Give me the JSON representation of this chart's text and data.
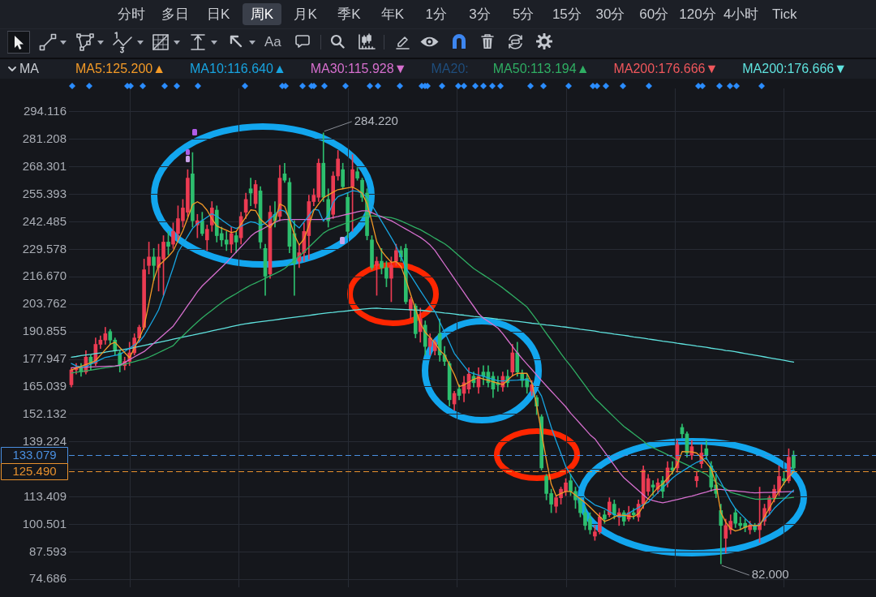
{
  "chart_data": {
    "type": "candlestick",
    "annotations": [
      "分时",
      "多日",
      "日K",
      "周K",
      "月K",
      "季K",
      "年K",
      "1分",
      "3分",
      "5分",
      "15分",
      "30分",
      "60分",
      "120分",
      "4小时",
      "Tick",
      "Aa",
      "MA",
      "MA20:",
      "284.220",
      "82.000"
    ],
    "categories": [
      null,
      null,
      null,
      null,
      null,
      null,
      null,
      null,
      null,
      null,
      null,
      null,
      null,
      null,
      null,
      null,
      null,
      null,
      null,
      null,
      null,
      null,
      null,
      null,
      null,
      null,
      null,
      null,
      null,
      null,
      null,
      null,
      null,
      null,
      null,
      null,
      null,
      null,
      null,
      null,
      null,
      null,
      null,
      null,
      null,
      null,
      null,
      null,
      null,
      null,
      null,
      null,
      null,
      null,
      null,
      null,
      null,
      null,
      null,
      null,
      null,
      null,
      null,
      null,
      null,
      null,
      null,
      null,
      null,
      null,
      null,
      null,
      null,
      null,
      null,
      null,
      null,
      null,
      null,
      null,
      null,
      null,
      null,
      null,
      null,
      null,
      null,
      null,
      null,
      null,
      null,
      null,
      null,
      null,
      null,
      null,
      null,
      null,
      null,
      null,
      null,
      null,
      null,
      null,
      null,
      null,
      null,
      null,
      null,
      null,
      null,
      null,
      null,
      null,
      null,
      null,
      null,
      null,
      null,
      null,
      null,
      null,
      null,
      null,
      null,
      null,
      null,
      null,
      null,
      null,
      null,
      null,
      null,
      null,
      null,
      null,
      null,
      null,
      null,
      null,
      null,
      null,
      null,
      null,
      null,
      null,
      null,
      null,
      null,
      null
    ],
    "ohlc": [
      [
        166,
        174,
        165,
        173
      ],
      [
        173,
        176,
        171,
        174
      ],
      [
        174,
        176,
        170,
        172
      ],
      [
        172,
        182,
        171,
        179
      ],
      [
        179,
        180,
        173,
        176
      ],
      [
        176,
        188,
        175,
        185
      ],
      [
        185,
        189,
        183,
        187
      ],
      [
        187,
        193,
        185,
        190
      ],
      [
        191,
        192,
        185,
        187
      ],
      [
        187,
        188,
        180,
        182
      ],
      [
        181,
        182,
        172,
        175
      ],
      [
        175,
        179,
        173,
        177
      ],
      [
        177,
        186,
        175,
        181
      ],
      [
        181,
        190,
        180,
        188
      ],
      [
        188,
        194,
        186,
        193
      ],
      [
        193,
        225,
        192,
        220
      ],
      [
        222,
        233,
        218,
        226
      ],
      [
        226,
        230,
        215,
        222
      ],
      [
        221,
        232,
        210,
        226
      ],
      [
        225,
        236,
        208,
        233
      ],
      [
        233,
        238,
        227,
        231
      ],
      [
        232,
        242,
        230,
        238
      ],
      [
        237,
        250,
        234,
        244
      ],
      [
        243,
        253,
        240,
        249
      ],
      [
        247,
        267,
        245,
        263
      ],
      [
        265,
        275,
        240,
        243
      ],
      [
        241,
        246,
        235,
        243
      ],
      [
        243,
        247,
        236,
        237
      ],
      [
        234,
        241,
        229,
        239
      ],
      [
        241,
        252,
        238,
        249
      ],
      [
        248,
        250,
        233,
        236
      ],
      [
        237,
        240,
        231,
        234
      ],
      [
        234,
        238,
        229,
        232
      ],
      [
        232,
        240,
        228,
        237
      ],
      [
        236,
        238,
        228,
        233
      ],
      [
        235,
        247,
        232,
        245
      ],
      [
        247,
        256,
        244,
        253
      ],
      [
        258,
        263,
        250,
        256
      ],
      [
        251,
        262,
        249,
        260
      ],
      [
        257,
        259,
        230,
        233
      ],
      [
        230,
        232,
        208,
        217
      ],
      [
        218,
        250,
        216,
        247
      ],
      [
        246,
        252,
        240,
        243
      ],
      [
        245,
        269,
        243,
        263
      ],
      [
        265,
        270,
        261,
        262
      ],
      [
        261,
        263,
        228,
        231
      ],
      [
        237,
        243,
        208,
        223
      ],
      [
        224,
        232,
        221,
        228
      ],
      [
        228,
        242,
        224,
        238
      ],
      [
        236,
        255,
        225,
        252
      ],
      [
        252,
        258,
        250,
        255
      ],
      [
        254,
        272,
        252,
        270
      ],
      [
        270,
        284.22,
        252,
        254
      ],
      [
        253,
        258,
        240,
        243
      ],
      [
        246,
        266,
        244,
        264
      ],
      [
        264,
        276,
        262,
        272
      ],
      [
        267,
        270,
        258,
        259
      ],
      [
        254,
        256,
        235,
        238
      ],
      [
        259,
        274,
        238,
        267
      ],
      [
        266,
        268,
        262,
        263
      ],
      [
        262,
        263,
        252,
        254
      ],
      [
        256,
        258,
        234,
        236
      ],
      [
        234,
        236,
        220,
        221
      ],
      [
        222,
        226,
        208,
        224
      ],
      [
        224,
        230,
        218,
        221
      ],
      [
        221,
        224,
        212,
        216
      ],
      [
        216,
        226,
        205,
        222
      ],
      [
        224,
        232,
        222,
        229
      ],
      [
        229,
        231,
        224,
        226
      ],
      [
        230,
        232,
        204,
        205
      ],
      [
        201,
        207,
        197,
        206
      ],
      [
        203,
        204,
        188,
        190
      ],
      [
        191,
        202,
        186,
        197
      ],
      [
        194,
        196,
        180,
        184
      ],
      [
        184,
        190,
        180,
        188
      ],
      [
        182,
        187,
        180,
        186
      ],
      [
        190,
        197,
        177,
        180
      ],
      [
        180,
        184,
        175,
        177
      ],
      [
        176,
        177,
        156,
        159
      ],
      [
        157,
        163,
        154,
        162
      ],
      [
        164,
        166,
        159,
        161
      ],
      [
        162,
        170,
        158,
        167
      ],
      [
        164,
        174,
        162,
        171
      ],
      [
        170,
        172,
        165,
        167
      ],
      [
        165,
        174,
        162,
        170
      ],
      [
        172,
        175,
        166,
        170
      ],
      [
        172,
        175,
        165,
        167
      ],
      [
        170,
        172,
        160,
        164
      ],
      [
        167,
        170,
        163,
        166
      ],
      [
        165,
        172,
        163,
        170
      ],
      [
        170,
        173,
        165,
        167
      ],
      [
        172,
        185,
        170,
        181
      ],
      [
        181,
        186,
        170,
        172
      ],
      [
        171,
        173,
        165,
        168
      ],
      [
        169,
        171,
        162,
        165
      ],
      [
        163,
        168,
        161,
        166
      ],
      [
        160,
        161,
        152,
        156
      ],
      [
        151,
        152,
        126,
        127
      ],
      [
        123,
        124,
        112,
        115
      ],
      [
        115,
        117,
        106,
        110
      ],
      [
        109,
        114,
        106,
        113
      ],
      [
        113,
        118,
        110,
        117
      ],
      [
        116,
        122,
        114,
        120
      ],
      [
        121,
        124,
        114,
        116
      ],
      [
        116,
        118,
        108,
        112
      ],
      [
        112,
        113,
        104,
        106
      ],
      [
        106,
        109,
        98,
        100
      ],
      [
        103,
        106,
        96,
        98
      ],
      [
        95,
        100,
        93,
        97
      ],
      [
        97,
        106,
        96,
        104
      ],
      [
        105,
        107,
        101,
        103
      ],
      [
        105,
        113,
        104,
        111
      ],
      [
        110,
        112,
        103,
        105
      ],
      [
        104,
        108,
        100,
        106
      ],
      [
        106,
        107,
        100,
        102
      ],
      [
        103,
        109,
        102,
        106
      ],
      [
        106,
        108,
        103,
        105
      ],
      [
        104,
        112,
        102,
        110
      ],
      [
        110,
        128,
        108,
        126
      ],
      [
        116,
        124,
        114,
        122
      ],
      [
        119,
        121,
        114,
        118
      ],
      [
        117,
        122,
        115,
        120
      ],
      [
        121,
        123,
        113,
        116
      ],
      [
        120,
        130,
        118,
        127
      ],
      [
        127,
        130,
        124,
        126
      ],
      [
        127,
        140,
        125,
        138
      ],
      [
        146,
        147.6,
        141,
        143
      ],
      [
        143,
        144,
        132,
        134
      ],
      [
        133,
        140,
        131,
        137
      ],
      [
        121,
        125,
        118,
        123
      ],
      [
        129,
        138,
        127,
        134
      ],
      [
        136,
        140,
        131,
        133
      ],
      [
        128,
        130,
        116,
        118
      ],
      [
        119,
        124,
        113,
        115
      ],
      [
        107,
        110,
        82,
        100
      ],
      [
        94,
        103,
        87,
        100
      ],
      [
        98,
        105,
        96,
        102
      ],
      [
        106,
        108,
        99,
        101
      ],
      [
        101,
        104,
        98,
        100
      ],
      [
        101,
        103,
        97,
        99
      ],
      [
        98,
        102,
        96,
        100
      ],
      [
        100,
        101,
        97,
        98
      ],
      [
        98,
        118,
        92,
        101
      ],
      [
        102,
        110,
        100,
        108
      ],
      [
        107,
        114,
        105,
        113
      ],
      [
        113,
        119,
        111,
        117
      ],
      [
        116,
        128,
        114,
        123
      ],
      [
        122,
        125,
        119,
        121
      ],
      [
        121,
        136,
        120,
        132
      ],
      [
        133,
        135,
        126,
        127
      ]
    ],
    "colors": [
      "#eb3b52",
      "#eb3b52",
      "#2dbf6e",
      "#eb3b52",
      "#2dbf6e",
      "#eb3b52",
      "#eb3b52",
      "#eb3b52",
      "#2dbf6e",
      "#2dbf6e",
      "#2dbf6e",
      "#eb3b52",
      "#eb3b52",
      "#eb3b52",
      "#eb3b52",
      "#eb3b52",
      "#eb3b52",
      "#2dbf6e",
      "#eb3b52",
      "#eb3b52",
      "#2dbf6e",
      "#eb3b52",
      "#eb3b52",
      "#eb3b52",
      "#eb3b52",
      "#2dbf6e",
      "#eb3b52",
      "#2dbf6e",
      "#eb3b52",
      "#eb3b52",
      "#2dbf6e",
      "#2dbf6e",
      "#2dbf6e",
      "#eb3b52",
      "#2dbf6e",
      "#eb3b52",
      "#eb3b52",
      "#2dbf6e",
      "#eb3b52",
      "#2dbf6e",
      "#2dbf6e",
      "#eb3b52",
      "#2dbf6e",
      "#eb3b52",
      "#2dbf6e",
      "#2dbf6e",
      "#2dbf6e",
      "#eb3b52",
      "#eb3b52",
      "#eb3b52",
      "#eb3b52",
      "#eb3b52",
      "#2dbf6e",
      "#2dbf6e",
      "#eb3b52",
      "#eb3b52",
      "#2dbf6e",
      "#2dbf6e",
      "#eb3b52",
      "#2dbf6e",
      "#2dbf6e",
      "#2dbf6e",
      "#2dbf6e",
      "#eb3b52",
      "#2dbf6e",
      "#2dbf6e",
      "#eb3b52",
      "#eb3b52",
      "#2dbf6e",
      "#2dbf6e",
      "#eb3b52",
      "#2dbf6e",
      "#eb3b52",
      "#2dbf6e",
      "#eb3b52",
      "#eb3b52",
      "#2dbf6e",
      "#2dbf6e",
      "#2dbf6e",
      "#eb3b52",
      "#2dbf6e",
      "#eb3b52",
      "#eb3b52",
      "#2dbf6e",
      "#eb3b52",
      "#2dbf6e",
      "#2dbf6e",
      "#2dbf6e",
      "#2dbf6e",
      "#eb3b52",
      "#2dbf6e",
      "#eb3b52",
      "#2dbf6e",
      "#2dbf6e",
      "#2dbf6e",
      "#eb3b52",
      "#2dbf6e",
      "#2dbf6e",
      "#2dbf6e",
      "#2dbf6e",
      "#eb3b52",
      "#eb3b52",
      "#eb3b52",
      "#2dbf6e",
      "#2dbf6e",
      "#2dbf6e",
      "#2dbf6e",
      "#2dbf6e",
      "#eb3b52",
      "#eb3b52",
      "#2dbf6e",
      "#eb3b52",
      "#2dbf6e",
      "#eb3b52",
      "#2dbf6e",
      "#eb3b52",
      "#2dbf6e",
      "#eb3b52",
      "#eb3b52",
      "#eb3b52",
      "#2dbf6e",
      "#eb3b52",
      "#2dbf6e",
      "#eb3b52",
      "#2dbf6e",
      "#eb3b52",
      "#2dbf6e",
      "#2dbf6e",
      "#eb3b52",
      "#eb3b52",
      "#eb3b52",
      "#2dbf6e",
      "#2dbf6e",
      "#2dbf6e",
      "#2dbf6e",
      "#eb3b52",
      "#eb3b52",
      "#2dbf6e",
      "#2dbf6e",
      "#2dbf6e",
      "#eb3b52",
      "#2dbf6e",
      "#eb3b52",
      "#eb3b52",
      "#eb3b52",
      "#eb3b52",
      "#eb3b52",
      "#2dbf6e",
      "#eb3b52",
      "#2dbf6e"
    ],
    "series": [
      {
        "type": "line",
        "name": "MA5:125.200▲",
        "color": "#f39a27",
        "values": [
          173.0,
          173.8,
          174.7,
          175.5,
          176.3,
          177.4,
          179.9,
          182.5,
          185.0,
          186.0,
          183.5,
          181.1,
          178.7,
          183.2,
          187.7,
          193.3,
          204.3,
          215.3,
          221.9,
          224.0,
          226.2,
          228.8,
          233.6,
          238.3,
          244.3,
          250.6,
          251.9,
          250.6,
          247.9,
          243.9,
          240.5,
          239.5,
          238.5,
          237.5,
          238.0,
          241.4,
          244.7,
          248.1,
          247.8,
          243.7,
          241.6,
          239.8,
          242.7,
          250.9,
          249.7,
          243.6,
          236.4,
          231.6,
          234.4,
          240.7,
          247.7,
          250.8,
          253.8,
          255.1,
          256.4,
          257.6,
          258.0,
          258.4,
          258.8,
          257.6,
          255.9,
          250.9,
          242.6,
          233.2,
          228.8,
          226.0,
          223.5,
          223.9,
          221.6,
          215.5,
          208.4,
          201.5,
          194.9,
          190.7,
          188.2,
          185.6,
          182.2,
          180.0,
          175.4,
          170.9,
          165.2,
          165.9,
          167.3,
          168.6,
          169.4,
          168.7,
          168.1,
          167.4,
          166.8,
          166.1,
          168.2,
          170.3,
          171.4,
          171.4,
          171.4,
          166.8,
          156.4,
          143.4,
          130.7,
          119.4,
          113.9,
          115.0,
          116.0,
          116.0,
          114.2,
          112.5,
          110.7,
          108.6,
          106.3,
          104.1,
          101.9,
          102.7,
          104.0,
          104.9,
          104.7,
          104.4,
          104.1,
          105.5,
          109.2,
          112.6,
          115.2,
          117.8,
          119.5,
          122.2,
          124.8,
          128.8,
          134.7,
          134.6,
          134.5,
          134.0,
          131.8,
          129.4,
          126.6,
          119.6,
          106.0,
          101.6,
          98.6,
          97.4,
          98.1,
          99.2,
          100.0,
          100.0,
          100.0,
          104.1,
          108.1,
          112.1,
          116.2,
          119.8,
          122.8,
          125.2
        ]
      },
      {
        "type": "line",
        "name": "MA10:116.640▲",
        "color": "#18a4e0",
        "values": [
          176.0,
          174.9,
          174.4,
          174.6,
          175.7,
          176.7,
          177.8,
          178.9,
          179.3,
          179.8,
          180.2,
          181.7,
          183.2,
          184.7,
          186.2,
          189.0,
          193.0,
          197.0,
          201.2,
          207.6,
          214.3,
          221.0,
          228.2,
          232.0,
          235.7,
          239.4,
          241.6,
          243.1,
          244.7,
          246.3,
          245.1,
          243.4,
          241.8,
          240.2,
          239.4,
          240.4,
          241.6,
          242.5,
          242.1,
          240.8,
          241.8,
          243.9,
          246.0,
          248.1,
          247.5,
          244.5,
          241.5,
          239.6,
          242.5,
          245.4,
          248.3,
          248.0,
          242.8,
          245.7,
          251.6,
          254.3,
          255.2,
          256.1,
          257.1,
          256.8,
          255.8,
          254.1,
          250.3,
          246.5,
          242.7,
          238.9,
          235.1,
          231.1,
          226.3,
          220.8,
          217.3,
          213.8,
          210.2,
          206.7,
          203.2,
          200.4,
          195.6,
          190.7,
          185.9,
          180.8,
          177.8,
          174.9,
          172.0,
          171.3,
          170.6,
          170.0,
          169.3,
          168.6,
          167.9,
          167.8,
          168.0,
          168.1,
          168.2,
          168.4,
          168.5,
          167.1,
          164.6,
          160.7,
          153.4,
          146.1,
          139.8,
          133.7,
          127.6,
          123.8,
          120.2,
          116.6,
          113.0,
          111.3,
          109.6,
          108.8,
          107.9,
          106.5,
          105.2,
          104.1,
          104.5,
          105.8,
          107.1,
          108.4,
          109.8,
          110.9,
          113.2,
          115.4,
          117.7,
          119.9,
          122.2,
          124.0,
          125.4,
          126.8,
          128.3,
          129.6,
          130.6,
          131.7,
          127.9,
          124.3,
          120.3,
          115.9,
          111.5,
          107.9,
          105.6,
          103.3,
          101.0,
          99.3,
          100.7,
          103.0,
          105.1,
          108.0,
          110.2,
          112.3,
          114.5,
          116.6
        ]
      },
      {
        "type": "line",
        "name": "MA30:115.928▼",
        "color": "#d66fce",
        "values": [
          174.0,
          174.1,
          174.2,
          174.3,
          174.4,
          174.5,
          174.6,
          174.7,
          174.8,
          174.9,
          175.2,
          176.5,
          177.8,
          179.1,
          180.4,
          181.6,
          183.5,
          185.5,
          187.5,
          189.5,
          191.5,
          193.5,
          196.7,
          199.9,
          203.2,
          206.4,
          209.7,
          212.4,
          214.6,
          216.8,
          219.0,
          221.2,
          223.4,
          225.9,
          228.3,
          230.8,
          233.2,
          235.7,
          237.5,
          238.6,
          239.8,
          241.0,
          242.2,
          243.3,
          243.6,
          243.6,
          243.6,
          243.6,
          243.6,
          243.6,
          243.6,
          243.6,
          243.6,
          244.0,
          244.5,
          245.0,
          245.6,
          246.1,
          246.6,
          247.2,
          247.7,
          247.7,
          246.8,
          245.8,
          244.9,
          243.9,
          243.0,
          241.7,
          240.4,
          239.1,
          237.8,
          236.5,
          235.2,
          233.5,
          231.6,
          229.1,
          225.8,
          222.5,
          219.2,
          215.9,
          212.6,
          209.3,
          206.0,
          202.8,
          199.5,
          197.3,
          195.8,
          194.2,
          192.6,
          190.0,
          187.0,
          184.0,
          181.0,
          178.3,
          175.7,
          173.2,
          170.6,
          168.0,
          165.5,
          163.0,
          160.6,
          158.1,
          155.7,
          152.7,
          150.2,
          147.7,
          145.2,
          142.6,
          140.7,
          137.6,
          134.5,
          131.4,
          128.2,
          125.1,
          122.4,
          120.4,
          118.4,
          116.4,
          114.4,
          112.4,
          111.7,
          111.1,
          110.6,
          111.1,
          111.7,
          112.2,
          112.7,
          113.3,
          113.8,
          114.4,
          115.1,
          115.7,
          116.4,
          117.0,
          116.9,
          116.6,
          116.4,
          116.2,
          116.0,
          115.8,
          115.5,
          115.3,
          115.4,
          115.5,
          115.5,
          115.6,
          115.7,
          115.8,
          115.9,
          115.9
        ]
      },
      {
        "type": "line",
        "name": "MA50:113.194▲",
        "color": "#2fae63",
        "values": [
          171.5,
          171.9,
          172.2,
          172.6,
          172.9,
          173.3,
          173.6,
          174.0,
          174.3,
          174.7,
          175.1,
          175.7,
          176.3,
          176.9,
          177.5,
          178.1,
          179.0,
          180.0,
          181.1,
          182.2,
          183.3,
          184.4,
          186.9,
          189.0,
          191.2,
          193.4,
          195.5,
          197.5,
          199.3,
          201.0,
          202.8,
          204.5,
          206.2,
          207.5,
          208.8,
          210.2,
          211.5,
          212.8,
          213.8,
          214.9,
          216.0,
          217.1,
          218.2,
          219.3,
          220.6,
          222.5,
          224.4,
          226.3,
          228.4,
          230.6,
          232.8,
          235.0,
          237.2,
          238.6,
          239.5,
          240.4,
          241.3,
          242.1,
          243.0,
          243.9,
          244.8,
          245.4,
          245.3,
          245.1,
          244.9,
          244.7,
          244.4,
          243.8,
          242.9,
          241.9,
          240.8,
          239.8,
          238.8,
          237.5,
          236.2,
          234.8,
          233.5,
          232.2,
          230.5,
          228.5,
          226.5,
          224.5,
          222.5,
          220.6,
          219.1,
          217.6,
          216.1,
          214.6,
          213.1,
          211.5,
          209.7,
          207.9,
          206.1,
          204.3,
          202.5,
          199.5,
          196.5,
          193.3,
          190.1,
          187.0,
          183.9,
          180.7,
          177.6,
          174.9,
          171.8,
          168.7,
          165.6,
          162.5,
          159.6,
          157.5,
          155.2,
          153.0,
          150.8,
          148.6,
          146.5,
          144.8,
          143.0,
          141.3,
          139.6,
          137.6,
          136.5,
          135.4,
          134.3,
          133.2,
          132.1,
          130.5,
          129.5,
          128.4,
          127.3,
          126.2,
          125.1,
          124.0,
          122.0,
          120.4,
          118.8,
          117.2,
          115.6,
          114.9,
          114.3,
          113.6,
          112.9,
          112.4,
          112.3,
          112.4,
          112.5,
          112.6,
          112.7,
          112.8,
          112.9,
          113.2
        ]
      },
      {
        "type": "line",
        "name": "MA200:176.666▼",
        "color": "#f0575c",
        "values": [
          null,
          null,
          null,
          null,
          null,
          null,
          null,
          null,
          null,
          null,
          null,
          null,
          null,
          null,
          null,
          null,
          null,
          null,
          null,
          null,
          null,
          null,
          null,
          null,
          null,
          null,
          null,
          null,
          null,
          null,
          null,
          null,
          null,
          null,
          null,
          null,
          null,
          null,
          null,
          null,
          null,
          null,
          null,
          null,
          null,
          null,
          null,
          null,
          null,
          null,
          null,
          null,
          null,
          null,
          null,
          null,
          null,
          null,
          null,
          null,
          null,
          null,
          null,
          null,
          null,
          null,
          null,
          null,
          null,
          null,
          null,
          null,
          null,
          null,
          null,
          null,
          null,
          null,
          null,
          null,
          null,
          null,
          null,
          null,
          null,
          null,
          null,
          null,
          null,
          null,
          null,
          null,
          null,
          null,
          null,
          null,
          null,
          null,
          null,
          null,
          null,
          null,
          null,
          null,
          null,
          null,
          null,
          null,
          null,
          null,
          null,
          null,
          null,
          null,
          null,
          null,
          null,
          null,
          null,
          null,
          null,
          null,
          null,
          null,
          null,
          null,
          null,
          null,
          null,
          null,
          null,
          null,
          null,
          null,
          null,
          null,
          null,
          null,
          null,
          null,
          null,
          null,
          null,
          null,
          null,
          null,
          null,
          null,
          null,
          null
        ]
      },
      {
        "type": "line",
        "name": "MA200:176.666▼",
        "color": "#5fe3df",
        "values": [
          179.0,
          179.3,
          179.7,
          180.0,
          180.3,
          180.7,
          181.0,
          181.3,
          181.7,
          182.0,
          182.3,
          182.7,
          183.0,
          183.5,
          184.0,
          184.5,
          185.0,
          185.4,
          185.9,
          186.4,
          186.9,
          187.4,
          187.9,
          188.4,
          188.9,
          189.3,
          189.8,
          190.3,
          190.8,
          191.3,
          191.8,
          192.3,
          192.8,
          193.3,
          193.8,
          194.3,
          194.7,
          195.0,
          195.3,
          195.6,
          195.9,
          196.2,
          196.5,
          196.8,
          197.1,
          197.4,
          197.7,
          198.0,
          198.3,
          198.6,
          198.9,
          199.2,
          199.5,
          199.8,
          200.0,
          200.3,
          200.5,
          200.7,
          201.0,
          201.2,
          201.5,
          201.7,
          201.9,
          202.0,
          201.8,
          201.7,
          201.6,
          201.5,
          201.4,
          201.3,
          201.2,
          201.1,
          201.0,
          200.8,
          200.5,
          200.3,
          200.0,
          199.7,
          199.5,
          199.2,
          198.9,
          198.7,
          198.4,
          198.1,
          197.9,
          197.6,
          197.4,
          197.1,
          196.8,
          196.6,
          196.3,
          196.0,
          195.8,
          195.5,
          195.2,
          194.9,
          194.7,
          194.4,
          194.1,
          193.9,
          193.6,
          193.3,
          193.1,
          192.8,
          192.5,
          192.1,
          191.8,
          191.5,
          191.2,
          190.8,
          190.5,
          190.2,
          189.8,
          189.5,
          189.2,
          188.9,
          188.5,
          188.2,
          187.9,
          187.5,
          187.2,
          186.9,
          186.5,
          186.2,
          185.9,
          185.5,
          185.2,
          184.9,
          184.6,
          184.2,
          183.9,
          183.6,
          183.2,
          182.9,
          182.6,
          182.1,
          181.9,
          181.5,
          181.1,
          180.7,
          180.3,
          179.9,
          179.5,
          179.1,
          178.7,
          178.3,
          177.9,
          177.5,
          177.1,
          176.7
        ]
      }
    ],
    "ylim": [
      71,
      305.1
    ],
    "yticks": [
      294.116,
      281.208,
      268.301,
      255.393,
      242.485,
      229.578,
      {
        "value": 216.67,
        "label": "216.670"
      },
      203.762,
      190.855,
      177.947,
      165.039,
      152.132,
      139.224,
      {
        "value": 126.316,
        "label": null
      },
      113.409,
      100.501,
      87.593,
      74.686
    ],
    "ref_lines": [
      {
        "axis": "y",
        "value": 133.079,
        "label": "133.079",
        "color": "#4a8fe0",
        "line_style": "dashed"
      },
      {
        "axis": "y",
        "value": 125.49,
        "label": "125.490",
        "color": "#e8912d",
        "line_style": "dashed"
      }
    ],
    "grid": true,
    "legend": "top left",
    "tick_labels": "y",
    "marker": "none"
  }
}
